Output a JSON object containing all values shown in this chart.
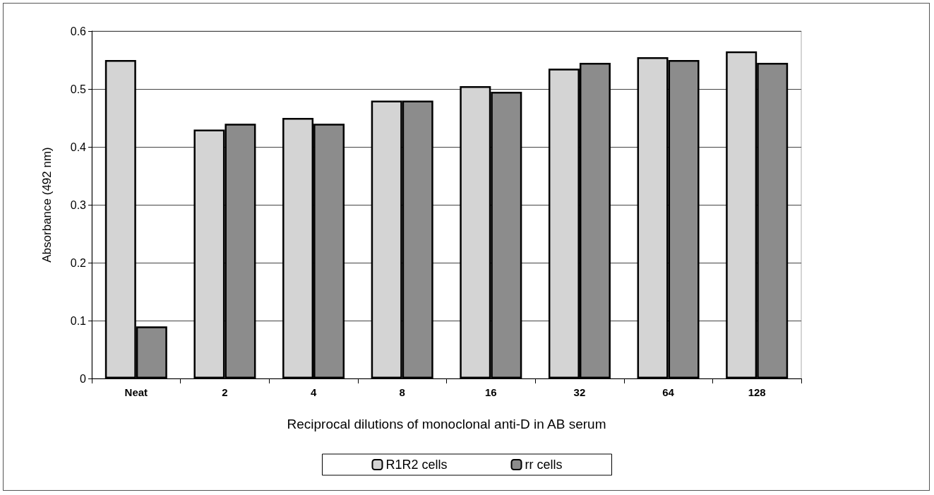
{
  "chart_data": {
    "type": "bar",
    "xlabel": "Reciprocal dilutions of monoclonal anti-D in AB serum",
    "ylabel": "Absorbance (492 nm)",
    "categories": [
      "Neat",
      "2",
      "4",
      "8",
      "16",
      "32",
      "64",
      "128"
    ],
    "series": [
      {
        "name": "R1R2 cells",
        "color": "#d4d4d4",
        "values": [
          0.55,
          0.43,
          0.45,
          0.48,
          0.505,
          0.535,
          0.555,
          0.565
        ]
      },
      {
        "name": "rr cells",
        "color": "#8c8c8c",
        "values": [
          0.09,
          0.44,
          0.44,
          0.48,
          0.495,
          0.545,
          0.55,
          0.545
        ]
      }
    ],
    "ylim": [
      0,
      0.6
    ],
    "yticks": [
      0,
      0.1,
      0.2,
      0.3,
      0.4,
      0.5,
      0.6
    ],
    "grid": "y",
    "legend": "bottom"
  }
}
